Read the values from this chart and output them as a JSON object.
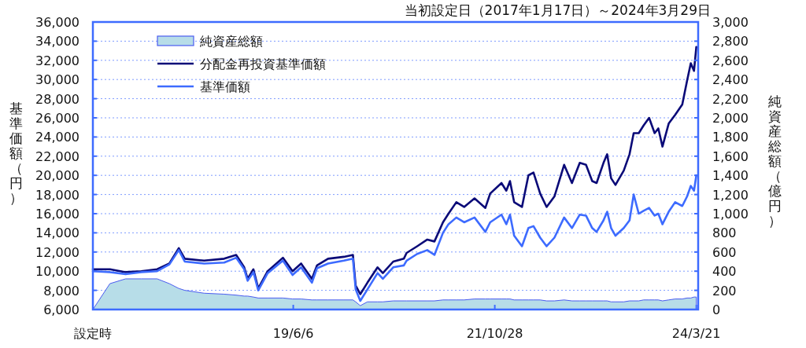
{
  "chart_data": {
    "type": "line",
    "title": "当初設定日（2017年1月17日）～2024年3月29日",
    "ylabel": "基準価額（円）",
    "y2label": "純資産総額（億円）",
    "x": [
      "2017-01-17",
      "2017-04-01",
      "2017-06-08",
      "2017-08-15",
      "2017-10-23",
      "2017-12-15",
      "2018-01-25",
      "2018-02-20",
      "2018-05-15",
      "2018-08-10",
      "2018-10-01",
      "2018-11-05",
      "2018-11-20",
      "2018-12-15",
      "2019-01-05",
      "2019-02-15",
      "2019-04-22",
      "2019-06-03",
      "2019-07-10",
      "2019-08-26",
      "2019-09-17",
      "2019-11-04",
      "2020-01-12",
      "2020-02-20",
      "2020-03-03",
      "2020-03-23",
      "2020-04-23",
      "2020-06-06",
      "2020-06-29",
      "2020-08-13",
      "2020-09-28",
      "2020-10-10",
      "2020-11-25",
      "2021-01-08",
      "2021-02-08",
      "2021-03-17",
      "2021-04-10",
      "2021-05-14",
      "2021-06-17",
      "2021-08-01",
      "2021-09-17",
      "2021-10-08",
      "2021-11-26",
      "2021-12-17",
      "2022-01-02",
      "2022-01-20",
      "2022-02-23",
      "2022-03-23",
      "2022-04-14",
      "2022-05-13",
      "2022-06-10",
      "2022-07-14",
      "2022-08-25",
      "2022-09-28",
      "2022-11-01",
      "2022-11-28",
      "2022-12-25",
      "2023-01-13",
      "2023-02-12",
      "2023-02-28",
      "2023-03-17",
      "2023-04-05",
      "2023-05-11",
      "2023-06-05",
      "2023-06-23",
      "2023-07-15",
      "2023-08-05",
      "2023-08-29",
      "2023-09-22",
      "2023-10-08",
      "2023-10-26",
      "2023-11-22",
      "2023-12-20",
      "2024-01-20",
      "2024-02-10",
      "2024-02-26",
      "2024-03-11",
      "2024-03-21"
    ],
    "series": [
      {
        "name": "純資産総額",
        "type": "area",
        "axis": "y2",
        "color": "#b7dde8",
        "values": [
          0,
          270,
          320,
          320,
          320,
          270,
          220,
          200,
          170,
          160,
          150,
          140,
          140,
          130,
          120,
          120,
          120,
          110,
          110,
          100,
          100,
          100,
          100,
          100,
          80,
          40,
          80,
          80,
          80,
          90,
          90,
          90,
          90,
          90,
          90,
          100,
          100,
          100,
          100,
          110,
          110,
          110,
          110,
          110,
          110,
          100,
          100,
          100,
          100,
          100,
          90,
          90,
          100,
          90,
          90,
          90,
          90,
          90,
          90,
          90,
          80,
          80,
          80,
          90,
          90,
          90,
          100,
          100,
          100,
          100,
          90,
          100,
          110,
          110,
          120,
          120,
          130,
          130
        ]
      },
      {
        "name": "分配金再投資基準価額",
        "color": "#0a0a78",
        "values": [
          10200,
          10200,
          9900,
          10000,
          10200,
          10800,
          12400,
          11300,
          11100,
          11300,
          11700,
          10400,
          9200,
          10200,
          8200,
          10000,
          11400,
          10000,
          10800,
          9200,
          10600,
          11300,
          11500,
          11700,
          8500,
          7600,
          8800,
          10400,
          9800,
          11000,
          11300,
          11900,
          12600,
          13300,
          13100,
          15100,
          16000,
          17200,
          16700,
          17600,
          16600,
          18100,
          19200,
          18400,
          19400,
          17200,
          16700,
          20000,
          20300,
          18100,
          16700,
          17800,
          21100,
          19200,
          21300,
          21100,
          19400,
          19200,
          21300,
          22200,
          19700,
          19000,
          20500,
          22200,
          24400,
          24400,
          25200,
          26000,
          24400,
          24900,
          23000,
          25400,
          26300,
          27400,
          29900,
          31700,
          30900,
          33400
        ]
      },
      {
        "name": "基準価額",
        "color": "#3d6bff",
        "values": [
          10000,
          9900,
          9700,
          9900,
          10000,
          10700,
          12200,
          11000,
          10800,
          10900,
          11400,
          10200,
          9000,
          9900,
          8000,
          9800,
          11100,
          9600,
          10400,
          8800,
          10300,
          10800,
          11100,
          11300,
          8100,
          6900,
          8100,
          9800,
          9200,
          10400,
          10600,
          11100,
          11800,
          12200,
          11700,
          14000,
          14900,
          15600,
          15100,
          15600,
          14100,
          15100,
          15900,
          14900,
          15900,
          13700,
          12600,
          14500,
          14700,
          13500,
          12600,
          13500,
          15600,
          14500,
          15900,
          15800,
          14500,
          14100,
          15300,
          16200,
          14500,
          13700,
          14500,
          15300,
          18000,
          16000,
          16300,
          16600,
          15800,
          16000,
          14900,
          16200,
          17200,
          16800,
          17800,
          18900,
          18400,
          20000
        ]
      }
    ],
    "xlim": [
      "2017-01-17",
      "2024-03-29"
    ],
    "xticks": [
      {
        "value": "2017-01-17",
        "label": "設定時"
      },
      {
        "value": "2019-06-06",
        "label": "19/6/6"
      },
      {
        "value": "2021-10-28",
        "label": "21/10/28"
      },
      {
        "value": "2024-03-21",
        "label": "24/3/21"
      }
    ],
    "ylim": [
      6000,
      36000
    ],
    "yticks": [
      {
        "value": 6000,
        "label": "6,000"
      },
      {
        "value": 8000,
        "label": "8,000"
      },
      {
        "value": 10000,
        "label": "10,000"
      },
      {
        "value": 12000,
        "label": "12,000"
      },
      {
        "value": 14000,
        "label": "14,000"
      },
      {
        "value": 16000,
        "label": "16,000"
      },
      {
        "value": 18000,
        "label": "18,000"
      },
      {
        "value": 20000,
        "label": "20,000"
      },
      {
        "value": 22000,
        "label": "22,000"
      },
      {
        "value": 24000,
        "label": "24,000"
      },
      {
        "value": 26000,
        "label": "26,000"
      },
      {
        "value": 28000,
        "label": "28,000"
      },
      {
        "value": 30000,
        "label": "30,000"
      },
      {
        "value": 32000,
        "label": "32,000"
      },
      {
        "value": 34000,
        "label": "34,000"
      },
      {
        "value": 36000,
        "label": "36,000"
      }
    ],
    "y2lim": [
      0,
      3000
    ],
    "y2ticks": [
      0,
      200,
      400,
      600,
      800,
      {
        "value": 1000,
        "label": "1,000"
      },
      {
        "value": 1200,
        "label": "1,200"
      },
      {
        "value": 1400,
        "label": "1,400"
      },
      {
        "value": 1600,
        "label": "1,600"
      },
      {
        "value": 1800,
        "label": "1,800"
      },
      {
        "value": 2000,
        "label": "2,000"
      },
      {
        "value": 2200,
        "label": "2,200"
      },
      {
        "value": 2400,
        "label": "2,400"
      },
      {
        "value": 2600,
        "label": "2,600"
      },
      {
        "value": 2800,
        "label": "2,800"
      },
      {
        "value": 3000,
        "label": "3,000"
      }
    ],
    "grid": "y",
    "legend": "top left",
    "line_style": "solid"
  }
}
